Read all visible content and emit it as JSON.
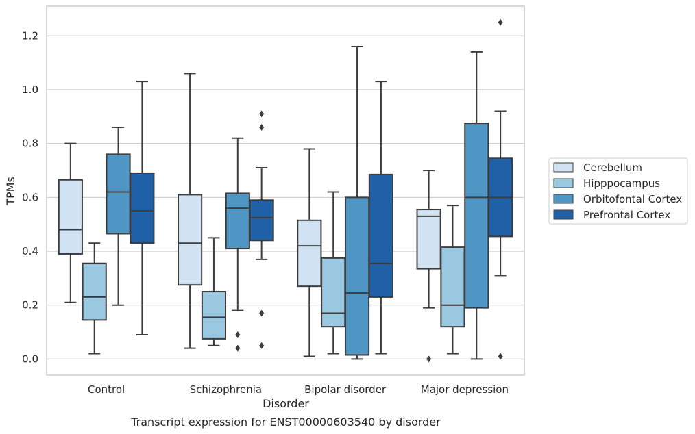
{
  "caption": "Transcript expression for ENST00000603540 by disorder",
  "chart_data": {
    "type": "box",
    "xlabel": "Disorder",
    "ylabel": "TPMs",
    "ylim": [
      -0.06,
      1.31
    ],
    "yticks": [
      "0.0",
      "0.2",
      "0.4",
      "0.6",
      "0.8",
      "1.0",
      "1.2"
    ],
    "ytick_values": [
      0.0,
      0.2,
      0.4,
      0.6,
      0.8,
      1.0,
      1.2
    ],
    "grid": "horizontal",
    "legend_position": "right",
    "categories": [
      "Control",
      "Schizophrenia",
      "Bipolar disorder",
      "Major depression"
    ],
    "series": [
      {
        "name": "Cerebellum",
        "color": "#d1e2f2",
        "boxes": [
          {
            "whislo": 0.21,
            "q1": 0.39,
            "med": 0.48,
            "q3": 0.665,
            "whishi": 0.8,
            "fliers": []
          },
          {
            "whislo": 0.04,
            "q1": 0.275,
            "med": 0.43,
            "q3": 0.61,
            "whishi": 1.06,
            "fliers": []
          },
          {
            "whislo": 0.01,
            "q1": 0.27,
            "med": 0.42,
            "q3": 0.515,
            "whishi": 0.78,
            "fliers": []
          },
          {
            "whislo": 0.19,
            "q1": 0.335,
            "med": 0.53,
            "q3": 0.555,
            "whishi": 0.7,
            "fliers": [
              0.0
            ]
          }
        ]
      },
      {
        "name": "Hipppocampus",
        "color": "#9ac8e0",
        "boxes": [
          {
            "whislo": 0.02,
            "q1": 0.145,
            "med": 0.23,
            "q3": 0.355,
            "whishi": 0.43,
            "fliers": []
          },
          {
            "whislo": 0.05,
            "q1": 0.075,
            "med": 0.155,
            "q3": 0.25,
            "whishi": 0.45,
            "fliers": []
          },
          {
            "whislo": 0.02,
            "q1": 0.12,
            "med": 0.17,
            "q3": 0.375,
            "whishi": 0.62,
            "fliers": []
          },
          {
            "whislo": 0.02,
            "q1": 0.12,
            "med": 0.2,
            "q3": 0.415,
            "whishi": 0.57,
            "fliers": []
          }
        ]
      },
      {
        "name": "Orbitofontal Cortex",
        "color": "#5096c5",
        "boxes": [
          {
            "whislo": 0.2,
            "q1": 0.465,
            "med": 0.62,
            "q3": 0.76,
            "whishi": 0.86,
            "fliers": []
          },
          {
            "whislo": 0.18,
            "q1": 0.41,
            "med": 0.56,
            "q3": 0.615,
            "whishi": 0.82,
            "fliers": [
              0.09,
              0.04
            ]
          },
          {
            "whislo": 0.0,
            "q1": 0.015,
            "med": 0.245,
            "q3": 0.6,
            "whishi": 1.16,
            "fliers": []
          },
          {
            "whislo": 0.0,
            "q1": 0.19,
            "med": 0.6,
            "q3": 0.875,
            "whishi": 1.14,
            "fliers": []
          }
        ]
      },
      {
        "name": "Prefrontal Cortex",
        "color": "#2060a6",
        "boxes": [
          {
            "whislo": 0.09,
            "q1": 0.43,
            "med": 0.55,
            "q3": 0.69,
            "whishi": 1.03,
            "fliers": []
          },
          {
            "whislo": 0.37,
            "q1": 0.44,
            "med": 0.525,
            "q3": 0.59,
            "whishi": 0.71,
            "fliers": [
              0.91,
              0.86,
              0.17,
              0.05
            ]
          },
          {
            "whislo": 0.02,
            "q1": 0.23,
            "med": 0.355,
            "q3": 0.685,
            "whishi": 1.03,
            "fliers": []
          },
          {
            "whislo": 0.31,
            "q1": 0.455,
            "med": 0.6,
            "q3": 0.745,
            "whishi": 0.92,
            "fliers": [
              1.25,
              0.01
            ]
          }
        ]
      }
    ]
  }
}
